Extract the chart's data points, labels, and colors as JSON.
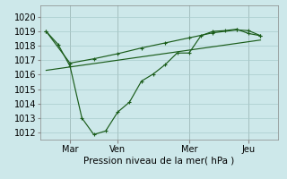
{
  "bg_color": "#cde8ea",
  "grid_color": "#a8cccc",
  "line_color": "#1a5c1a",
  "xlabel": "Pression niveau de la mer( hPa )",
  "ylim": [
    1011.5,
    1020.8
  ],
  "yticks": [
    1012,
    1013,
    1014,
    1015,
    1016,
    1017,
    1018,
    1019,
    1020
  ],
  "xtick_labels": [
    "Mar",
    "Ven",
    "Mer",
    "Jeu"
  ],
  "xtick_positions": [
    2,
    6,
    12,
    17
  ],
  "vline_positions": [
    2,
    6,
    12,
    17
  ],
  "xlim": [
    -0.5,
    19.5
  ],
  "series1_x": [
    0,
    1,
    2,
    3,
    4,
    5,
    6,
    7,
    8,
    9,
    10,
    11,
    12,
    13,
    14,
    15,
    16,
    17,
    18
  ],
  "series1_y": [
    1019.0,
    1018.1,
    1016.6,
    1013.0,
    1011.85,
    1012.1,
    1013.4,
    1014.1,
    1015.55,
    1016.05,
    1016.7,
    1017.5,
    1017.5,
    1018.7,
    1019.0,
    1019.05,
    1019.15,
    1018.85,
    1018.7
  ],
  "series2_x": [
    0,
    2,
    4,
    6,
    8,
    10,
    12,
    14,
    16,
    17,
    18
  ],
  "series2_y": [
    1019.0,
    1016.8,
    1017.1,
    1017.45,
    1017.85,
    1018.2,
    1018.55,
    1018.9,
    1019.1,
    1019.05,
    1018.7
  ],
  "trend_x": [
    0,
    18
  ],
  "trend_y": [
    1016.3,
    1018.4
  ]
}
